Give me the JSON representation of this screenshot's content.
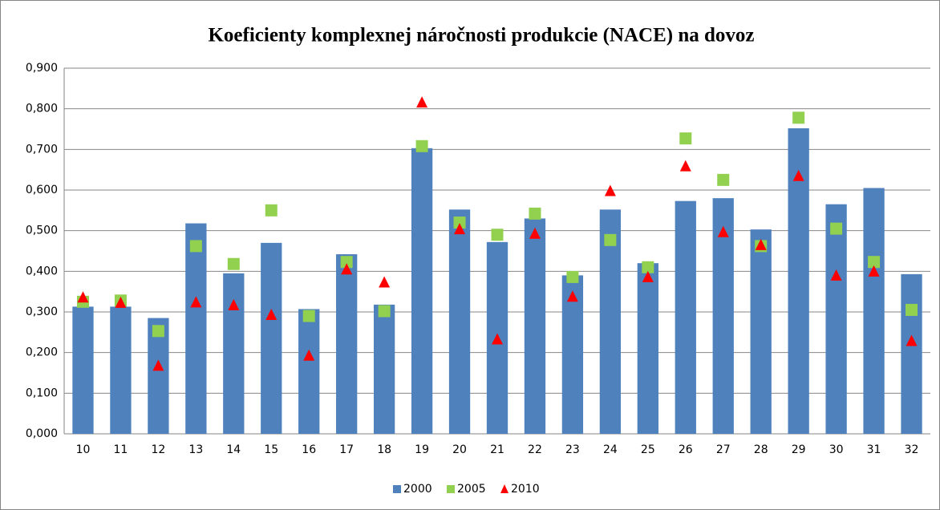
{
  "chart_data": {
    "type": "bar",
    "title": "Koeficienty komplexnej náročnosti produkcie (NACE) na dovoz",
    "categories": [
      "10",
      "11",
      "12",
      "13",
      "14",
      "15",
      "16",
      "17",
      "18",
      "19",
      "20",
      "21",
      "22",
      "23",
      "24",
      "25",
      "26",
      "27",
      "28",
      "29",
      "30",
      "31",
      "32"
    ],
    "series": [
      {
        "name": "2000",
        "color": "#4f81bd",
        "marker": "bar",
        "values": [
          0.313,
          0.313,
          0.285,
          0.518,
          0.395,
          0.47,
          0.307,
          0.442,
          0.318,
          0.703,
          0.552,
          0.472,
          0.53,
          0.39,
          0.552,
          0.42,
          0.573,
          0.58,
          0.503,
          0.752,
          0.565,
          0.605,
          0.393
        ]
      },
      {
        "name": "2005",
        "color": "#92d050",
        "marker": "square",
        "values": [
          0.325,
          0.328,
          0.253,
          0.462,
          0.418,
          0.55,
          0.29,
          0.423,
          0.302,
          0.708,
          0.52,
          0.49,
          0.542,
          0.386,
          0.477,
          0.41,
          0.727,
          0.625,
          0.462,
          0.778,
          0.505,
          0.423,
          0.305
        ]
      },
      {
        "name": "2010",
        "color": "#ff0000",
        "marker": "triangle",
        "values": [
          0.335,
          0.322,
          0.167,
          0.323,
          0.316,
          0.292,
          0.192,
          0.404,
          0.372,
          0.815,
          0.503,
          0.232,
          0.492,
          0.337,
          0.597,
          0.385,
          0.658,
          0.496,
          0.464,
          0.634,
          0.389,
          0.399,
          0.228
        ]
      }
    ],
    "ylim": [
      0,
      0.9
    ],
    "yticks": [
      {
        "value": 0,
        "label": "0,000"
      },
      {
        "value": 0.1,
        "label": "0,100"
      },
      {
        "value": 0.2,
        "label": "0,200"
      },
      {
        "value": 0.3,
        "label": "0,300"
      },
      {
        "value": 0.4,
        "label": "0,400"
      },
      {
        "value": 0.5,
        "label": "0,500"
      },
      {
        "value": 0.6,
        "label": "0,600"
      },
      {
        "value": 0.7,
        "label": "0,700"
      },
      {
        "value": 0.8,
        "label": "0,800"
      },
      {
        "value": 0.9,
        "label": "0,900"
      }
    ],
    "grid": true,
    "legend": "bottom"
  }
}
